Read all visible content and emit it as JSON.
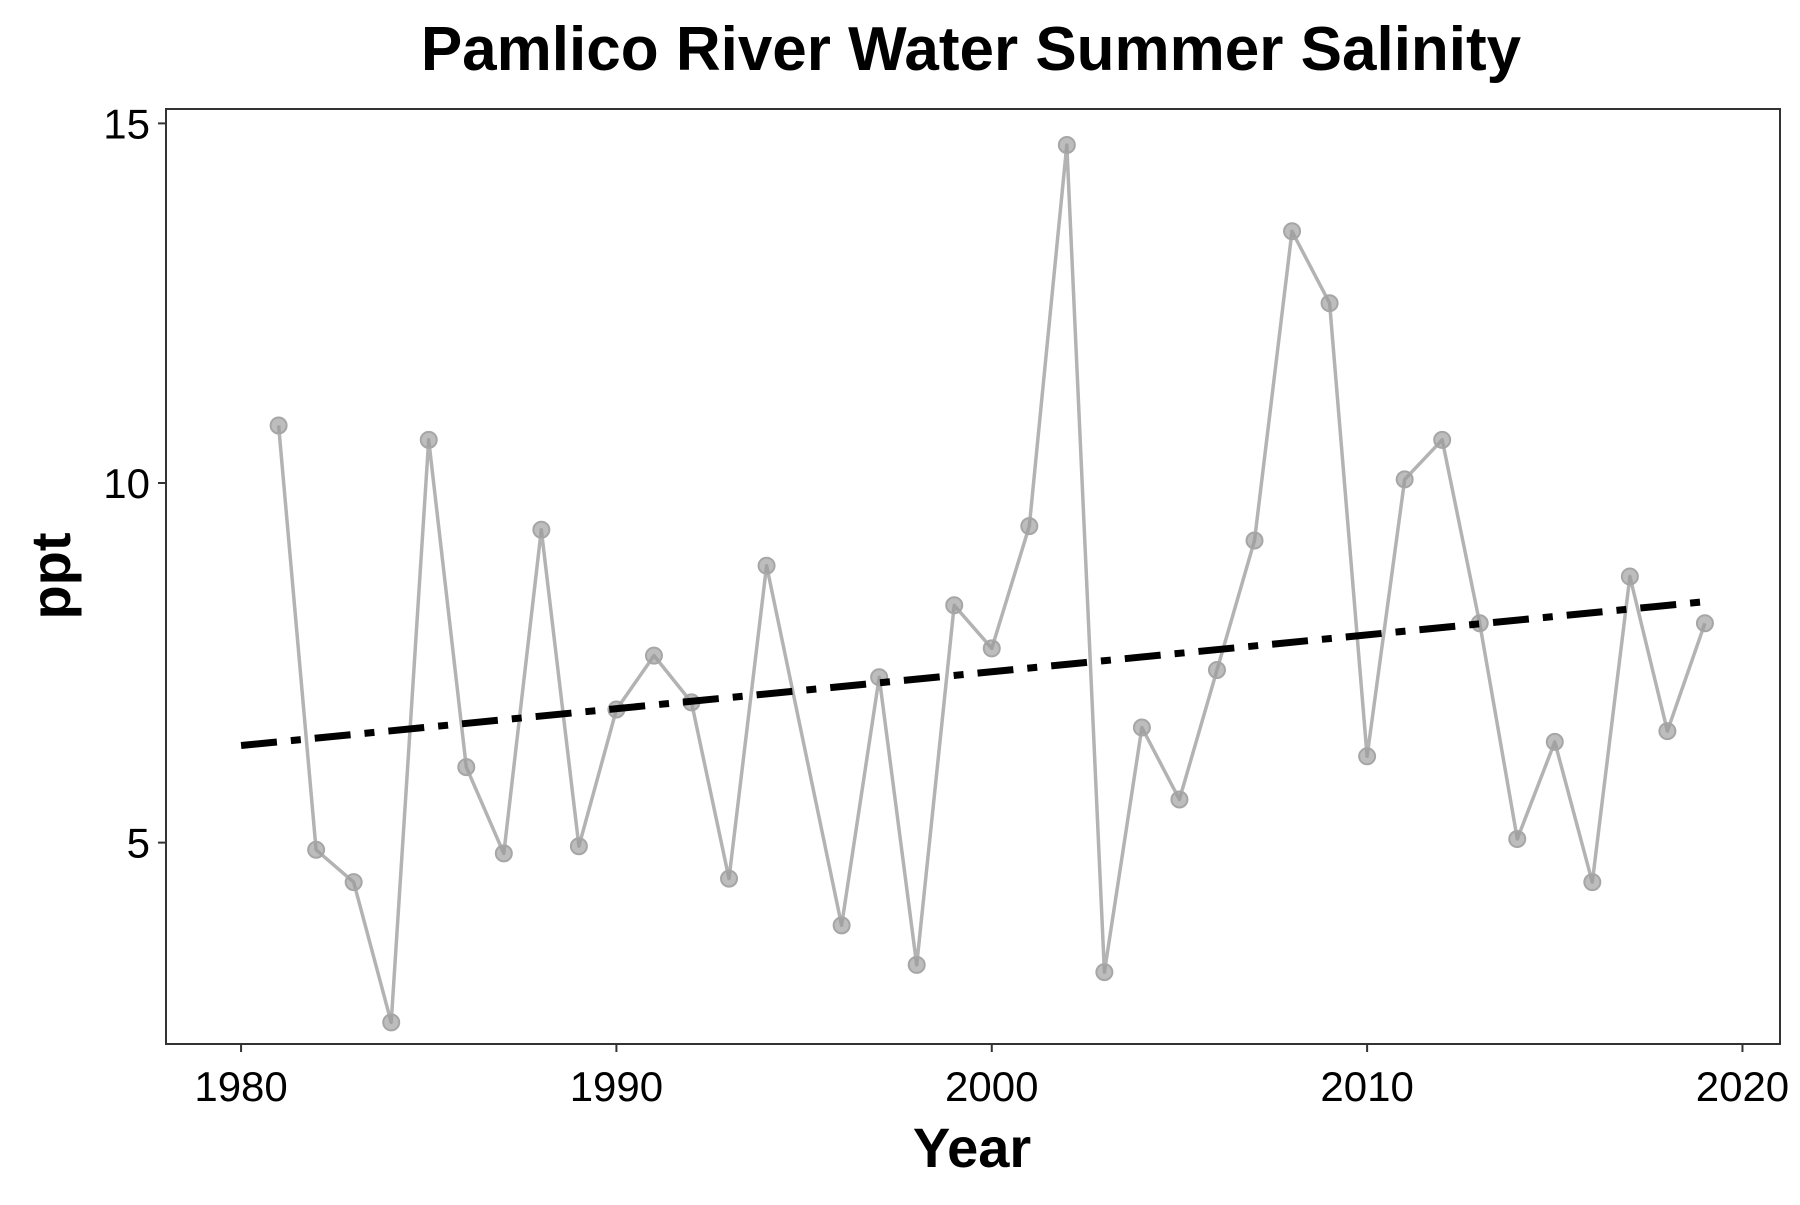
{
  "chart_data": {
    "type": "line",
    "title": "Pamlico River Water Summer Salinity",
    "xlabel": "Year",
    "ylabel": "ppt",
    "xlim": [
      1978,
      2021
    ],
    "ylim": [
      2.2,
      15.2
    ],
    "x_ticks": [
      1980,
      1990,
      2000,
      2010,
      2020
    ],
    "x_tick_labels": [
      "1980",
      "1990",
      "2000",
      "2010",
      "2020"
    ],
    "y_ticks": [
      5,
      10,
      15
    ],
    "y_tick_labels": [
      "5",
      "10",
      "15"
    ],
    "grid": false,
    "legend": "none",
    "series": [
      {
        "style": "gray line with points",
        "color": "#b3b3b3",
        "x": [
          1981,
          1982,
          1983,
          1984,
          1985,
          1986,
          1987,
          1988,
          1989,
          1990,
          1991,
          1992,
          1993,
          1994,
          1996,
          1997,
          1998,
          1999,
          2000,
          2001,
          2002,
          2003,
          2004,
          2005,
          2006,
          2007,
          2008,
          2009,
          2010,
          2011,
          2012,
          2013,
          2014,
          2015,
          2016,
          2017,
          2018,
          2019
        ],
        "y": [
          10.8,
          4.9,
          4.45,
          2.5,
          10.6,
          6.05,
          4.85,
          9.35,
          4.95,
          6.85,
          7.6,
          6.95,
          4.5,
          8.85,
          3.85,
          7.3,
          3.3,
          8.3,
          7.7,
          9.4,
          14.7,
          3.2,
          6.6,
          5.6,
          7.4,
          9.2,
          13.5,
          12.5,
          6.2,
          10.05,
          10.6,
          8.05,
          5.05,
          6.4,
          4.45,
          8.7,
          6.55,
          8.05
        ]
      },
      {
        "style": "linear trend, dash-dot",
        "color": "#000000",
        "x": [
          1980,
          2019
        ],
        "y": [
          6.35,
          8.35
        ]
      }
    ]
  }
}
